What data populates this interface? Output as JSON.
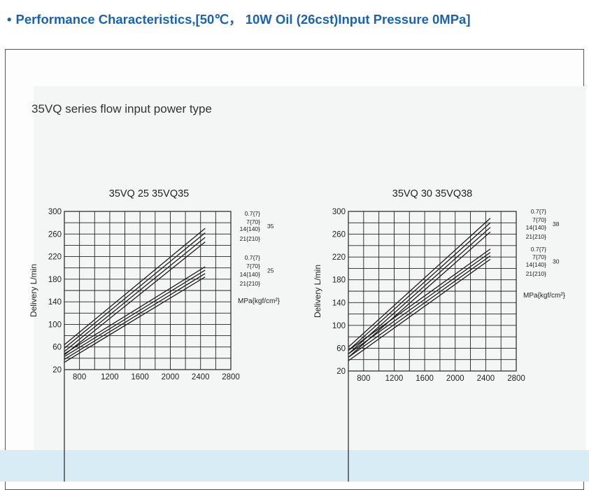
{
  "header": {
    "bullet": "•",
    "title": "Performance Characteristics,[50℃， 10W Oil (26cst)Input Pressure 0MPa]"
  },
  "panel": {
    "title": "35VQ series flow  input power type"
  },
  "colors": {
    "header_text": "#1a63b0",
    "grid": "#222222",
    "band": "#d8ecf5"
  },
  "chart_data": [
    {
      "type": "line",
      "title": "35VQ 25   35VQ35",
      "ylabel": "Delivery L/min",
      "xlabel": "",
      "unit_label": "MPa{kgf/cm²}",
      "xlim": [
        600,
        2800
      ],
      "ylim": [
        20,
        300
      ],
      "xticks": [
        800,
        1200,
        1600,
        2000,
        2400,
        2800
      ],
      "yticks": [
        20,
        60,
        100,
        140,
        180,
        220,
        260,
        300
      ],
      "grid": true,
      "groups": [
        {
          "name": "35",
          "pressures": [
            "0.7{7}",
            "7{70}",
            "14{140}",
            "21{210}"
          ]
        },
        {
          "name": "25",
          "pressures": [
            "0.7{7}",
            "7{70}",
            "14{140}",
            "21{210}"
          ]
        }
      ],
      "series": [
        {
          "x": [
            600,
            2460
          ],
          "y": [
            64,
            270
          ]
        },
        {
          "x": [
            600,
            2460
          ],
          "y": [
            58,
            262
          ]
        },
        {
          "x": [
            600,
            2460
          ],
          "y": [
            52,
            254
          ]
        },
        {
          "x": [
            600,
            2460
          ],
          "y": [
            46,
            246
          ]
        },
        {
          "x": [
            600,
            2460
          ],
          "y": [
            48,
            202
          ]
        },
        {
          "x": [
            600,
            2460
          ],
          "y": [
            43,
            196
          ]
        },
        {
          "x": [
            600,
            2460
          ],
          "y": [
            38,
            190
          ]
        },
        {
          "x": [
            600,
            2460
          ],
          "y": [
            33,
            184
          ]
        }
      ]
    },
    {
      "type": "line",
      "title": "35VQ 30   35VQ38",
      "ylabel": "Delivery L/min",
      "xlabel": "",
      "unit_label": "MPa{kgf/cm²}",
      "xlim": [
        600,
        2800
      ],
      "ylim": [
        20,
        300
      ],
      "xticks": [
        800,
        1200,
        1600,
        2000,
        2400,
        2800
      ],
      "yticks": [
        20,
        60,
        100,
        140,
        180,
        220,
        260,
        300
      ],
      "grid": true,
      "groups": [
        {
          "name": "38",
          "pressures": [
            "0.7{7}",
            "7{70}",
            "14{140}",
            "21{210}"
          ]
        },
        {
          "name": "30",
          "pressures": [
            "0.7{7}",
            "7{70}",
            "14{140}",
            "21{210}"
          ]
        }
      ],
      "series": [
        {
          "x": [
            600,
            2460
          ],
          "y": [
            62,
            288
          ]
        },
        {
          "x": [
            600,
            2460
          ],
          "y": [
            56,
            280
          ]
        },
        {
          "x": [
            600,
            2460
          ],
          "y": [
            50,
            272
          ]
        },
        {
          "x": [
            600,
            2460
          ],
          "y": [
            44,
            264
          ]
        },
        {
          "x": [
            600,
            2460
          ],
          "y": [
            56,
            234
          ]
        },
        {
          "x": [
            600,
            2460
          ],
          "y": [
            50,
            228
          ]
        },
        {
          "x": [
            600,
            2460
          ],
          "y": [
            44,
            222
          ]
        },
        {
          "x": [
            600,
            2460
          ],
          "y": [
            38,
            216
          ]
        }
      ]
    }
  ]
}
